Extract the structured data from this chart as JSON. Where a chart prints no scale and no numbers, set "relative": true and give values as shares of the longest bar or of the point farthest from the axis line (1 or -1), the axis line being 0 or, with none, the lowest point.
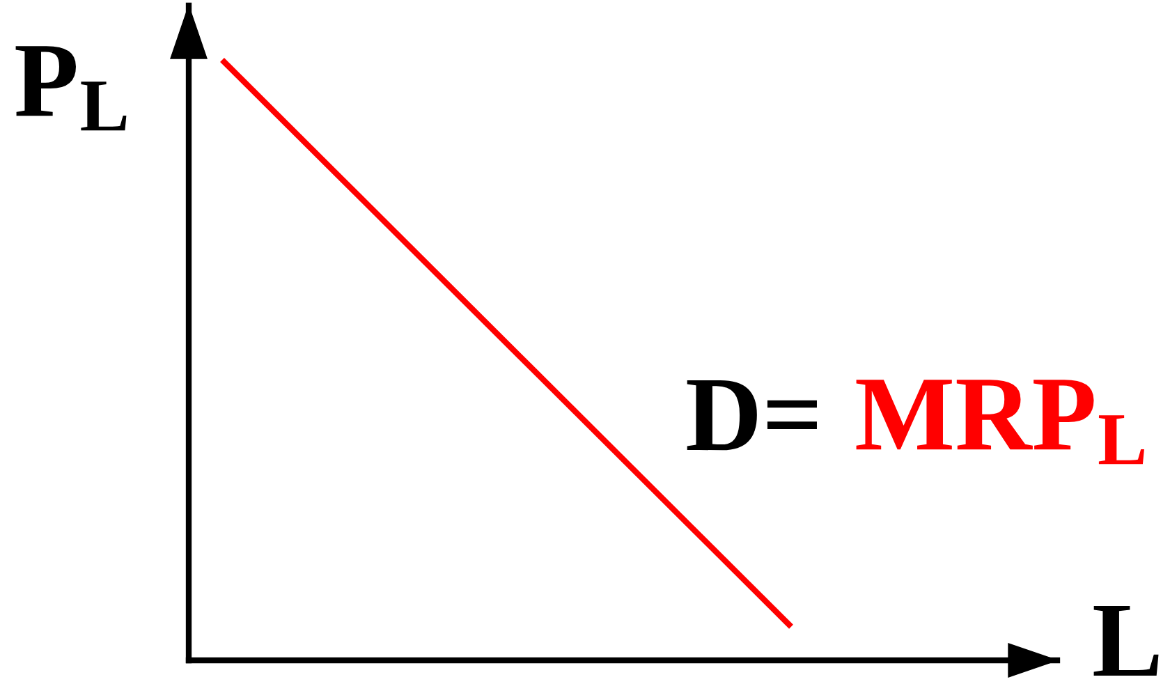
{
  "chart_data": {
    "type": "line",
    "relative": true,
    "xlabel": "L",
    "ylabel": "P$_{L}$",
    "categories": [
      null,
      null
    ],
    "grid": false,
    "legend": false,
    "annotations": [
      "D="
    ],
    "series": [
      {
        "name": "MRP$_{L}$",
        "color": "#ff0000",
        "values": [
          1,
          0.056
        ]
      }
    ]
  }
}
